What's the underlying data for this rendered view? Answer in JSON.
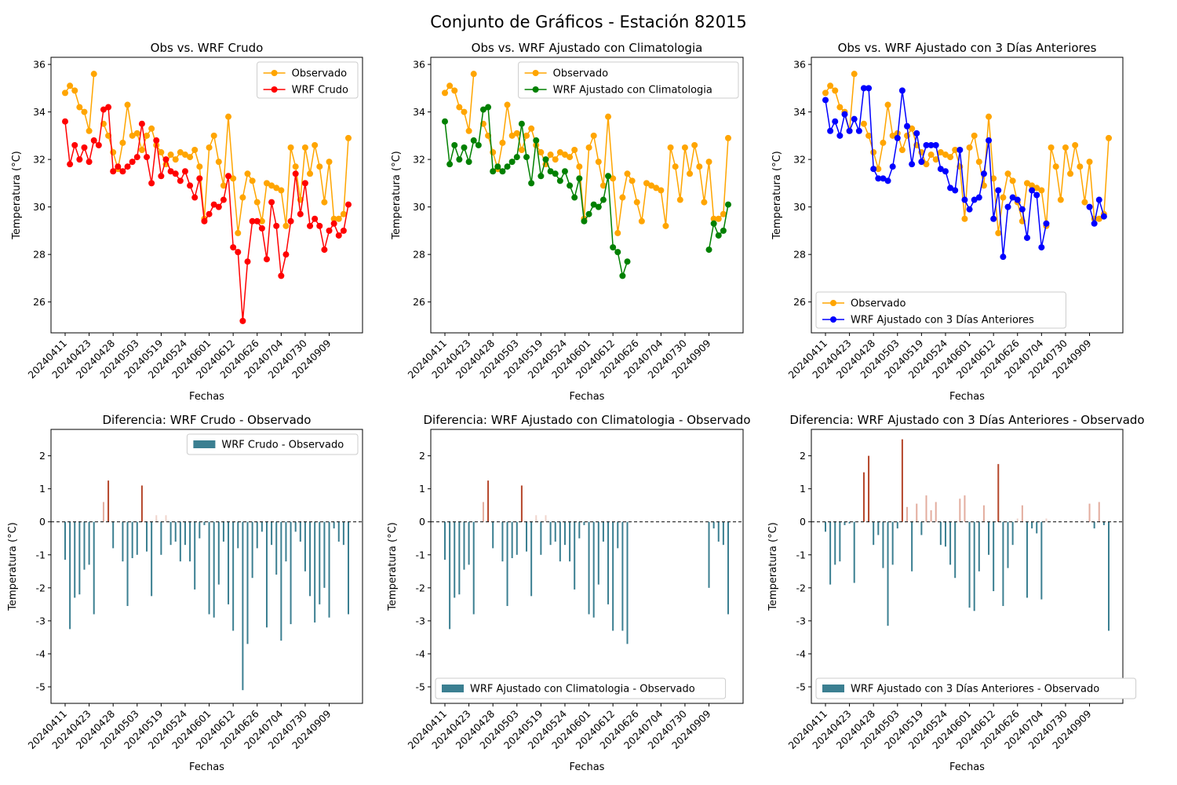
{
  "suptitle": "Conjunto de Gráficos - Estación 82015",
  "colors": {
    "observed": "#ffa500",
    "wrf_raw": "#ff0000",
    "wrf_clim": "#008000",
    "wrf_3d": "#0000ff",
    "bar_negative": "#3b7f91",
    "bar_positive": "#b5462a",
    "zero_line": "#000000"
  },
  "x_tick_labels": [
    "20240411",
    "20240423",
    "20240428",
    "20240503",
    "20240519",
    "20240524",
    "20240601",
    "20240612",
    "20240626",
    "20240704",
    "20240730",
    "20240909"
  ],
  "chart_data": [
    {
      "type": "line",
      "title": "Obs vs. WRF Crudo",
      "xlabel": "Fechas",
      "ylabel": "Temperatura (°C)",
      "ylim": [
        24.7,
        36.3
      ],
      "yticks": [
        26,
        28,
        30,
        32,
        34,
        36
      ],
      "legend_position": "upper right",
      "series": [
        {
          "name": "Observado",
          "color": "#ffa500",
          "values": [
            34.8,
            35.1,
            34.9,
            34.2,
            34.0,
            33.2,
            35.6,
            null,
            33.5,
            33.0,
            32.3,
            31.6,
            32.7,
            34.3,
            33.0,
            33.1,
            32.4,
            33.0,
            33.3,
            32.6,
            32.3,
            31.8,
            32.2,
            32.0,
            32.3,
            32.2,
            32.1,
            32.4,
            31.7,
            29.5,
            32.5,
            33.0,
            31.9,
            30.9,
            33.8,
            31.2,
            28.9,
            30.4,
            31.4,
            31.1,
            30.2,
            29.4,
            31.0,
            30.9,
            30.8,
            30.7,
            29.2,
            32.5,
            31.7,
            30.3,
            32.5,
            31.4,
            32.6,
            31.7,
            30.2,
            31.9,
            29.5,
            29.5,
            29.7,
            32.9
          ]
        },
        {
          "name": "WRF Crudo",
          "color": "#ff0000",
          "values": [
            33.6,
            31.8,
            32.6,
            32.0,
            32.5,
            31.9,
            32.8,
            32.6,
            34.1,
            34.2,
            31.5,
            31.7,
            31.5,
            31.7,
            31.9,
            32.1,
            33.5,
            32.1,
            31.0,
            32.8,
            31.3,
            32.0,
            31.5,
            31.4,
            31.1,
            31.5,
            30.9,
            30.4,
            31.2,
            29.4,
            29.7,
            30.1,
            30.0,
            30.3,
            31.3,
            28.3,
            28.1,
            25.2,
            27.7,
            29.4,
            29.4,
            29.1,
            27.8,
            30.2,
            29.2,
            27.1,
            28.0,
            29.4,
            31.4,
            29.7,
            31.0,
            29.2,
            29.5,
            29.2,
            28.2,
            29.0,
            29.3,
            28.8,
            29.0,
            30.1
          ]
        }
      ]
    },
    {
      "type": "line",
      "title": "Obs vs. WRF Ajustado con Climatologia",
      "xlabel": "Fechas",
      "ylabel": "Temperatura (°C)",
      "ylim": [
        24.7,
        36.3
      ],
      "yticks": [
        26,
        28,
        30,
        32,
        34,
        36
      ],
      "legend_position": "upper right",
      "series": [
        {
          "name": "Observado",
          "color": "#ffa500",
          "values": [
            34.8,
            35.1,
            34.9,
            34.2,
            34.0,
            33.2,
            35.6,
            null,
            33.5,
            33.0,
            32.3,
            31.6,
            32.7,
            34.3,
            33.0,
            33.1,
            32.4,
            33.0,
            33.3,
            32.6,
            32.3,
            31.8,
            32.2,
            32.0,
            32.3,
            32.2,
            32.1,
            32.4,
            31.7,
            29.5,
            32.5,
            33.0,
            31.9,
            30.9,
            33.8,
            31.2,
            28.9,
            30.4,
            31.4,
            31.1,
            30.2,
            29.4,
            31.0,
            30.9,
            30.8,
            30.7,
            29.2,
            32.5,
            31.7,
            30.3,
            32.5,
            31.4,
            32.6,
            31.7,
            30.2,
            31.9,
            29.5,
            29.5,
            29.7,
            32.9
          ]
        },
        {
          "name": "WRF Ajustado con Climatologia",
          "color": "#008000",
          "values": [
            33.6,
            31.8,
            32.6,
            32.0,
            32.5,
            31.9,
            32.8,
            32.6,
            34.1,
            34.2,
            31.5,
            31.7,
            31.5,
            31.7,
            31.9,
            32.1,
            33.5,
            32.1,
            31.0,
            32.8,
            31.3,
            32.0,
            31.5,
            31.4,
            31.1,
            31.5,
            30.9,
            30.4,
            31.2,
            29.4,
            29.7,
            30.1,
            30.0,
            30.3,
            31.3,
            28.3,
            28.1,
            27.1,
            27.7,
            null,
            null,
            null,
            null,
            null,
            null,
            null,
            null,
            null,
            null,
            null,
            null,
            null,
            null,
            null,
            null,
            28.2,
            29.3,
            28.8,
            29.0,
            30.1
          ]
        }
      ]
    },
    {
      "type": "line",
      "title": "Obs vs. WRF Ajustado con 3 Días Anteriores",
      "xlabel": "Fechas",
      "ylabel": "Temperatura (°C)",
      "ylim": [
        24.7,
        36.3
      ],
      "yticks": [
        26,
        28,
        30,
        32,
        34,
        36
      ],
      "legend_position": "lower left",
      "series": [
        {
          "name": "Observado",
          "color": "#ffa500",
          "values": [
            34.8,
            35.1,
            34.9,
            34.2,
            34.0,
            33.2,
            35.6,
            null,
            33.5,
            33.0,
            32.3,
            31.6,
            32.7,
            34.3,
            33.0,
            33.1,
            32.4,
            33.0,
            33.3,
            32.6,
            32.3,
            31.8,
            32.2,
            32.0,
            32.3,
            32.2,
            32.1,
            32.4,
            31.7,
            29.5,
            32.5,
            33.0,
            31.9,
            30.9,
            33.8,
            31.2,
            28.9,
            30.4,
            31.4,
            31.1,
            30.2,
            29.4,
            31.0,
            30.9,
            30.8,
            30.7,
            29.2,
            32.5,
            31.7,
            30.3,
            32.5,
            31.4,
            32.6,
            31.7,
            30.2,
            31.9,
            29.5,
            29.5,
            29.7,
            32.9
          ]
        },
        {
          "name": "WRF Ajustado con 3 Días Anteriores",
          "color": "#0000ff",
          "values": [
            34.5,
            33.2,
            33.6,
            33.0,
            33.9,
            33.2,
            33.7,
            33.2,
            35.0,
            35.0,
            31.6,
            31.2,
            31.2,
            31.1,
            31.7,
            32.9,
            34.9,
            33.4,
            31.8,
            33.1,
            31.9,
            32.6,
            32.6,
            32.6,
            31.6,
            31.5,
            30.8,
            30.7,
            32.4,
            30.3,
            29.9,
            30.3,
            30.4,
            31.4,
            32.8,
            29.5,
            30.7,
            27.9,
            30.0,
            30.4,
            30.3,
            29.9,
            28.7,
            30.7,
            30.5,
            28.3,
            29.3,
            null,
            null,
            null,
            null,
            null,
            null,
            null,
            null,
            30.0,
            29.3,
            30.3,
            29.6,
            null
          ]
        }
      ]
    },
    {
      "type": "bar",
      "title": "Diferencia: WRF Crudo - Observado",
      "xlabel": "Fechas",
      "ylabel": "Temperatura (°C)",
      "ylim": [
        -5.5,
        2.8
      ],
      "yticks": [
        -5,
        -4,
        -3,
        -2,
        -1,
        0,
        1,
        2
      ],
      "legend_position": "upper right",
      "series": [
        {
          "name": "WRF Crudo - Observado",
          "values": [
            -1.15,
            -3.25,
            -2.3,
            -2.2,
            -1.45,
            -1.3,
            -2.8,
            null,
            0.6,
            1.25,
            -0.8,
            0.0,
            -1.2,
            -2.55,
            -1.1,
            -1.0,
            1.1,
            -0.9,
            -2.25,
            0.2,
            -1.0,
            0.2,
            -0.7,
            -0.6,
            -1.2,
            -0.7,
            -1.2,
            -2.05,
            -0.5,
            -0.1,
            -2.8,
            -2.9,
            -1.9,
            -0.6,
            -2.5,
            -3.3,
            -0.8,
            -5.1,
            -3.7,
            -1.7,
            -0.8,
            -0.3,
            -3.2,
            -0.7,
            -1.6,
            -3.6,
            -1.2,
            -3.1,
            -0.3,
            -0.6,
            -1.5,
            -2.25,
            -3.05,
            -2.5,
            -2.0,
            -2.9,
            -0.2,
            -0.6,
            -0.7,
            -2.8
          ]
        }
      ]
    },
    {
      "type": "bar",
      "title": "Diferencia: WRF Ajustado con Climatologia - Observado",
      "xlabel": "Fechas",
      "ylabel": "Temperatura (°C)",
      "ylim": [
        -5.5,
        2.8
      ],
      "yticks": [
        -5,
        -4,
        -3,
        -2,
        -1,
        0,
        1,
        2
      ],
      "legend_position": "lower left",
      "series": [
        {
          "name": "WRF Ajustado con Climatologia - Observado",
          "values": [
            -1.15,
            -3.25,
            -2.3,
            -2.2,
            -1.45,
            -1.3,
            -2.8,
            null,
            0.6,
            1.25,
            -0.8,
            0.0,
            -1.2,
            -2.55,
            -1.1,
            -1.0,
            1.1,
            -0.9,
            -2.25,
            0.2,
            -1.0,
            0.2,
            -0.7,
            -0.6,
            -1.2,
            -0.7,
            -1.2,
            -2.05,
            -0.5,
            -0.1,
            -2.8,
            -2.9,
            -1.9,
            -0.6,
            -2.5,
            -3.3,
            -0.8,
            -3.3,
            -3.7,
            null,
            null,
            null,
            null,
            null,
            null,
            null,
            null,
            null,
            null,
            null,
            null,
            null,
            null,
            null,
            null,
            -2.0,
            -0.2,
            -0.6,
            -0.7,
            -2.8
          ]
        }
      ]
    },
    {
      "type": "bar",
      "title": "Diferencia: WRF Ajustado con 3 Días Anteriores - Observado",
      "xlabel": "Fechas",
      "ylabel": "Temperatura (°C)",
      "ylim": [
        -5.5,
        2.8
      ],
      "yticks": [
        -5,
        -4,
        -3,
        -2,
        -1,
        0,
        1,
        2
      ],
      "legend_position": "lower left",
      "series": [
        {
          "name": "WRF Ajustado con 3 Días Anteriores - Observado",
          "values": [
            -0.3,
            -1.9,
            -1.3,
            -1.2,
            -0.1,
            -0.05,
            -1.85,
            null,
            1.5,
            2.0,
            -0.7,
            -0.4,
            -1.4,
            -3.15,
            -1.3,
            -0.2,
            2.5,
            0.45,
            -1.5,
            0.55,
            -0.4,
            0.8,
            0.35,
            0.6,
            -0.7,
            -0.75,
            -1.3,
            -1.7,
            0.7,
            0.8,
            -2.6,
            -2.7,
            -1.5,
            0.5,
            -1.0,
            -2.1,
            1.75,
            -2.55,
            -1.4,
            -0.7,
            0.1,
            0.5,
            -2.3,
            -0.2,
            -0.35,
            -2.35,
            0.1,
            null,
            null,
            null,
            null,
            null,
            null,
            null,
            null,
            0.55,
            -0.2,
            0.6,
            -0.1,
            -3.3
          ]
        }
      ]
    }
  ]
}
